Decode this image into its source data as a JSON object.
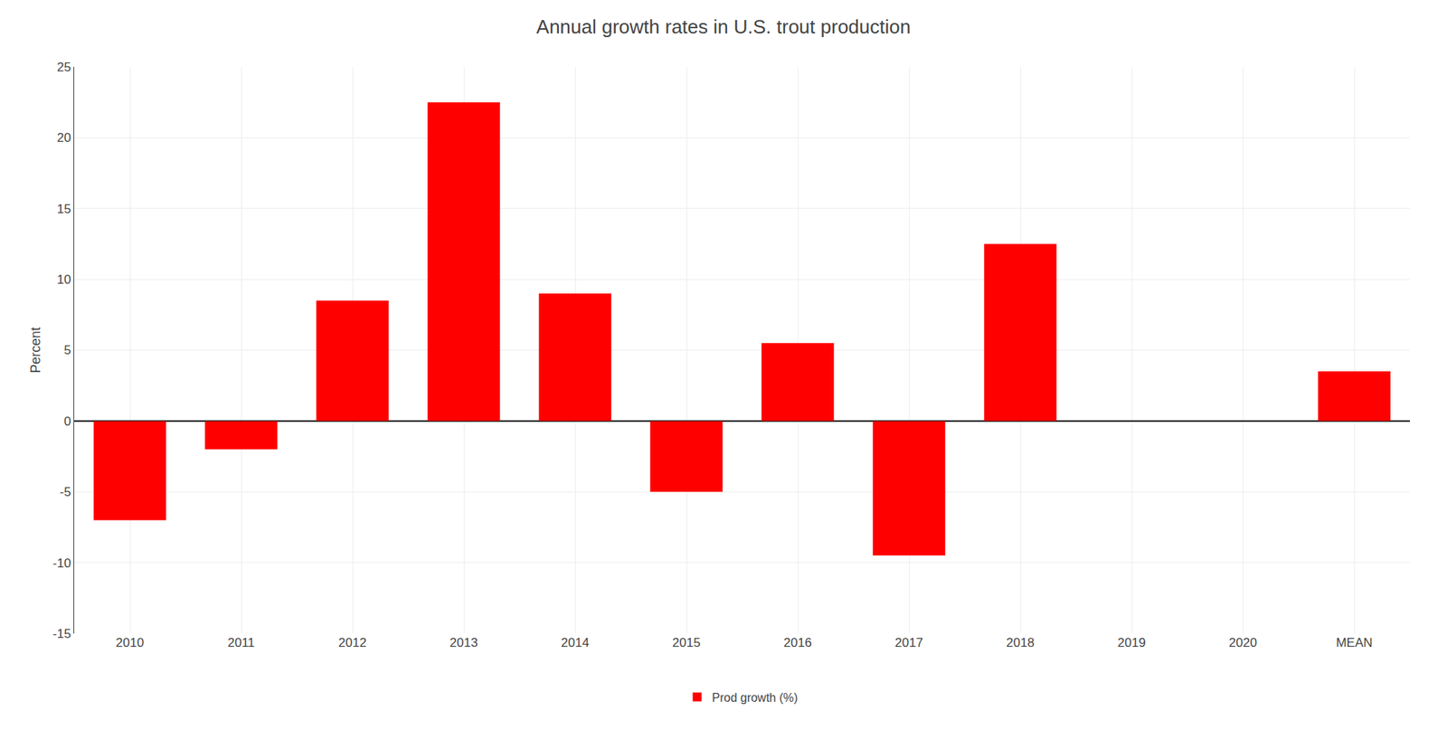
{
  "chart_data": {
    "type": "bar",
    "title": "Annual growth rates in U.S. trout production",
    "ylabel": "Percent",
    "categories": [
      "2010",
      "2011",
      "2012",
      "2013",
      "2014",
      "2015",
      "2016",
      "2017",
      "2018",
      "2019",
      "2020",
      "MEAN"
    ],
    "series": [
      {
        "name": "Prod growth (%)",
        "color": "#FF0000",
        "values": [
          -7.0,
          -2.0,
          8.5,
          22.5,
          9.0,
          -5.0,
          5.5,
          -9.5,
          12.5,
          0.0,
          0.0,
          3.5
        ]
      }
    ],
    "ylim": [
      -15,
      25
    ],
    "yticks": [
      -15,
      -10,
      -5,
      0,
      5,
      10,
      15,
      20,
      25
    ],
    "grid": true,
    "legend": "bottom"
  }
}
